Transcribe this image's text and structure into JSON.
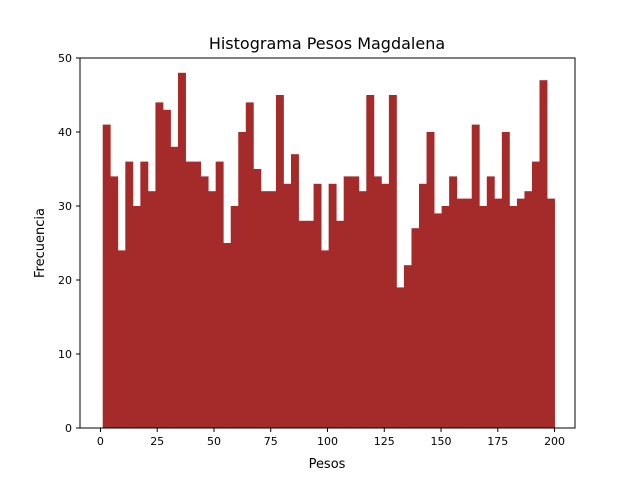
{
  "chart_data": {
    "type": "bar",
    "title": "Histograma Pesos Magdalena",
    "xlabel": "Pesos",
    "ylabel": "Frecuencia",
    "bar_color": "#a52a2a",
    "xlim": [
      -9,
      209
    ],
    "ylim": [
      0,
      50
    ],
    "xticks": [
      0,
      25,
      50,
      75,
      100,
      125,
      150,
      175,
      200
    ],
    "yticks": [
      0,
      10,
      20,
      30,
      40,
      50
    ],
    "grid": false,
    "bins": {
      "start": 1,
      "end": 200,
      "count": 60
    },
    "values": [
      41,
      34,
      24,
      36,
      30,
      36,
      32,
      44,
      43,
      38,
      48,
      36,
      36,
      34,
      32,
      36,
      25,
      30,
      40,
      44,
      35,
      32,
      32,
      45,
      33,
      37,
      28,
      28,
      33,
      24,
      33,
      28,
      34,
      34,
      32,
      45,
      34,
      33,
      45,
      19,
      22,
      27,
      33,
      40,
      29,
      30,
      34,
      31,
      31,
      41,
      30,
      34,
      31,
      40,
      30,
      31,
      32,
      36,
      47,
      31
    ]
  }
}
